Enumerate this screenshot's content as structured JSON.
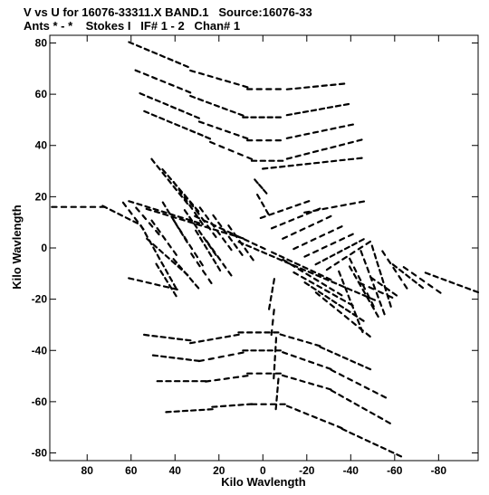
{
  "header": {
    "line1": "V vs U for 16076-33311.X BAND.1   Source:16076-33",
    "line2": "Ants * - *    Stokes I   IF# 1 - 2   Chan# 1"
  },
  "chart_data": {
    "type": "scatter",
    "title": "V vs U for 16076-33311.X BAND.1   Source:16076-33",
    "subtitle": "Ants * - *    Stokes I   IF# 1 - 2   Chan# 1",
    "xlabel": "Kilo Wavlength",
    "ylabel": "Kilo Wavlength",
    "xlim": [
      97,
      -98
    ],
    "ylim": [
      -83,
      83
    ],
    "x_ticks": [
      80,
      60,
      40,
      20,
      0,
      -20,
      -40,
      -60,
      -80
    ],
    "x_tick_labels": [
      "80",
      "60",
      "40",
      "20",
      "0",
      "-20",
      "-40",
      "-60",
      "-80"
    ],
    "y_ticks": [
      -80,
      -60,
      -40,
      -20,
      0,
      20,
      40,
      60,
      80
    ],
    "y_tick_labels": [
      "-80",
      "-60",
      "-40",
      "-20",
      "0",
      "20",
      "40",
      "60",
      "80"
    ],
    "grid": false,
    "marker_color": "#000000",
    "series": [
      {
        "tracks": [
          {
            "x": [
              60,
              35
            ],
            "y": [
              80,
              71
            ]
          },
          {
            "x": [
              32,
              8
            ],
            "y": [
              69,
              63
            ]
          },
          {
            "x": [
              6,
              -7
            ],
            "y": [
              62,
              62
            ]
          },
          {
            "x": [
              -12,
              -36
            ],
            "y": [
              62,
              64
            ]
          },
          {
            "x": [
              57,
              34
            ],
            "y": [
              69,
              61
            ]
          },
          {
            "x": [
              32,
              10
            ],
            "y": [
              59,
              52
            ]
          },
          {
            "x": [
              8,
              -7
            ],
            "y": [
              51,
              51
            ]
          },
          {
            "x": [
              -12,
              -38
            ],
            "y": [
              52,
              56
            ]
          },
          {
            "x": [
              55,
              30
            ],
            "y": [
              60,
              51
            ]
          },
          {
            "x": [
              28,
              8
            ],
            "y": [
              49,
              43
            ]
          },
          {
            "x": [
              6,
              -7
            ],
            "y": [
              42,
              42
            ]
          },
          {
            "x": [
              -12,
              -40
            ],
            "y": [
              43,
              48
            ]
          },
          {
            "x": [
              53,
              25
            ],
            "y": [
              53,
              43
            ]
          },
          {
            "x": [
              23,
              6
            ],
            "y": [
              41,
              35
            ]
          },
          {
            "x": [
              4,
              -8
            ],
            "y": [
              34,
              34
            ]
          },
          {
            "x": [
              -12,
              -44
            ],
            "y": [
              35,
              42
            ]
          },
          {
            "x": [
              -1,
              -44
            ],
            "y": [
              31,
              35
            ]
          },
          {
            "x": [
              3,
              -1
            ],
            "y": [
              26,
              22
            ]
          },
          {
            "x": [
              2,
              -2
            ],
            "y": [
              20,
              14
            ]
          },
          {
            "x": [
              53,
              34
            ],
            "y": [
              -34,
              -36
            ]
          },
          {
            "x": [
              32,
              12
            ],
            "y": [
              -37,
              -34
            ]
          },
          {
            "x": [
              10,
              -6
            ],
            "y": [
              -33,
              -33
            ]
          },
          {
            "x": [
              -9,
              -25
            ],
            "y": [
              -34,
              -38
            ]
          },
          {
            "x": [
              -27,
              -48
            ],
            "y": [
              -39,
              -47
            ]
          },
          {
            "x": [
              49,
              30
            ],
            "y": [
              -42,
              -44
            ]
          },
          {
            "x": [
              28,
              10
            ],
            "y": [
              -44,
              -41
            ]
          },
          {
            "x": [
              8,
              -7
            ],
            "y": [
              -40,
              -40
            ]
          },
          {
            "x": [
              -10,
              -30
            ],
            "y": [
              -41,
              -47
            ]
          },
          {
            "x": [
              -32,
              -55
            ],
            "y": [
              -48,
              -58
            ]
          },
          {
            "x": [
              47,
              27
            ],
            "y": [
              -52,
              -52
            ]
          },
          {
            "x": [
              25,
              8
            ],
            "y": [
              -52,
              -50
            ]
          },
          {
            "x": [
              6,
              -7
            ],
            "y": [
              -49,
              -49
            ]
          },
          {
            "x": [
              -10,
              -30
            ],
            "y": [
              -50,
              -55
            ]
          },
          {
            "x": [
              -32,
              -57
            ],
            "y": [
              -56,
              -68
            ]
          },
          {
            "x": [
              43,
              24
            ],
            "y": [
              -64,
              -63
            ]
          },
          {
            "x": [
              22,
              6
            ],
            "y": [
              -62,
              -61
            ]
          },
          {
            "x": [
              4,
              -9
            ],
            "y": [
              -61,
              -61
            ]
          },
          {
            "x": [
              -12,
              -35
            ],
            "y": [
              -62,
              -70
            ]
          },
          {
            "x": [
              -37,
              -62
            ],
            "y": [
              -71,
              -81
            ]
          },
          {
            "x": [
              -5,
              -3
            ],
            "y": [
              -13,
              -23
            ]
          },
          {
            "x": [
              -5,
              -4
            ],
            "y": [
              -25,
              -33
            ]
          },
          {
            "x": [
              -6,
              -5
            ],
            "y": [
              -36,
              -50
            ]
          },
          {
            "x": [
              -7,
              -6
            ],
            "y": [
              -52,
              -62
            ]
          },
          {
            "x": [
              95,
              73
            ],
            "y": [
              16,
              16
            ]
          },
          {
            "x": [
              72,
              58
            ],
            "y": [
              16,
              10
            ]
          },
          {
            "x": [
              57,
              48
            ],
            "y": [
              15,
              6
            ]
          },
          {
            "x": [
              63,
              55
            ],
            "y": [
              17,
              8
            ]
          },
          {
            "x": [
              50,
              40
            ],
            "y": [
              10,
              -2
            ]
          },
          {
            "x": [
              45,
              35
            ],
            "y": [
              17,
              3
            ]
          },
          {
            "x": [
              40,
              28
            ],
            "y": [
              10,
              -6
            ]
          },
          {
            "x": [
              35,
              22
            ],
            "y": [
              14,
              -2
            ]
          },
          {
            "x": [
              30,
              20
            ],
            "y": [
              6,
              -8
            ]
          },
          {
            "x": [
              48,
              40
            ],
            "y": [
              -7,
              -18
            ]
          },
          {
            "x": [
              40,
              30
            ],
            "y": [
              -5,
              -15
            ]
          },
          {
            "x": [
              32,
              24
            ],
            "y": [
              -3,
              -13
            ]
          },
          {
            "x": [
              25,
              15
            ],
            "y": [
              2,
              -10
            ]
          },
          {
            "x": [
              50,
              35
            ],
            "y": [
              34,
              18
            ]
          },
          {
            "x": [
              45,
              30
            ],
            "y": [
              30,
              15
            ]
          },
          {
            "x": [
              40,
              28
            ],
            "y": [
              25,
              10
            ]
          },
          {
            "x": [
              35,
              22
            ],
            "y": [
              20,
              5
            ]
          },
          {
            "x": [
              28,
              15
            ],
            "y": [
              15,
              0
            ]
          },
          {
            "x": [
              22,
              10
            ],
            "y": [
              12,
              -2
            ]
          },
          {
            "x": [
              15,
              5
            ],
            "y": [
              8,
              -4
            ]
          },
          {
            "x": [
              60,
              30
            ],
            "y": [
              18,
              10
            ]
          },
          {
            "x": [
              60,
              40
            ],
            "y": [
              -12,
              -16
            ]
          },
          {
            "x": [
              55,
              40
            ],
            "y": [
              8,
              -15
            ]
          },
          {
            "x": [
              52,
              35
            ],
            "y": [
              3,
              -10
            ]
          },
          {
            "x": [
              30,
              0
            ],
            "y": [
              12,
              0
            ]
          },
          {
            "x": [
              52,
              10
            ],
            "y": [
              15,
              4
            ]
          },
          {
            "x": [
              10,
              -50
            ],
            "y": [
              2,
              -20
            ]
          },
          {
            "x": [
              0,
              -20
            ],
            "y": [
              12,
              18
            ]
          },
          {
            "x": [
              -5,
              -25
            ],
            "y": [
              8,
              15
            ]
          },
          {
            "x": [
              -10,
              -30
            ],
            "y": [
              4,
              12
            ]
          },
          {
            "x": [
              -15,
              -35
            ],
            "y": [
              0,
              8
            ]
          },
          {
            "x": [
              -20,
              -40
            ],
            "y": [
              -3,
              5
            ]
          },
          {
            "x": [
              -25,
              -45
            ],
            "y": [
              -6,
              3
            ]
          },
          {
            "x": [
              -30,
              -48
            ],
            "y": [
              -8,
              2
            ]
          },
          {
            "x": [
              -20,
              -45
            ],
            "y": [
              14,
              18
            ]
          },
          {
            "x": [
              -5,
              -30
            ],
            "y": [
              -2,
              -12
            ]
          },
          {
            "x": [
              -10,
              -35
            ],
            "y": [
              -5,
              -18
            ]
          },
          {
            "x": [
              -15,
              -40
            ],
            "y": [
              -10,
              -22
            ]
          },
          {
            "x": [
              -20,
              -45
            ],
            "y": [
              -14,
              -28
            ]
          },
          {
            "x": [
              -25,
              -48
            ],
            "y": [
              -18,
              -34
            ]
          },
          {
            "x": [
              -40,
              -50
            ],
            "y": [
              -5,
              -22
            ]
          },
          {
            "x": [
              -45,
              -55
            ],
            "y": [
              -2,
              -25
            ]
          },
          {
            "x": [
              -50,
              -58
            ],
            "y": [
              0,
              -22
            ]
          },
          {
            "x": [
              -55,
              -65
            ],
            "y": [
              -2,
              -15
            ]
          },
          {
            "x": [
              -60,
              -72
            ],
            "y": [
              -7,
              -15
            ]
          },
          {
            "x": [
              -65,
              -80
            ],
            "y": [
              -8,
              -17
            ]
          },
          {
            "x": [
              -75,
              -97
            ],
            "y": [
              -10,
              -17
            ]
          },
          {
            "x": [
              -50,
              -60
            ],
            "y": [
              -12,
              -18
            ]
          },
          {
            "x": [
              -45,
              -58
            ],
            "y": [
              -14,
              -19
            ]
          },
          {
            "x": [
              -35,
              -45
            ],
            "y": [
              -10,
              -32
            ]
          },
          {
            "x": [
              -40,
              -52
            ],
            "y": [
              -8,
              -26
            ]
          }
        ]
      }
    ]
  }
}
